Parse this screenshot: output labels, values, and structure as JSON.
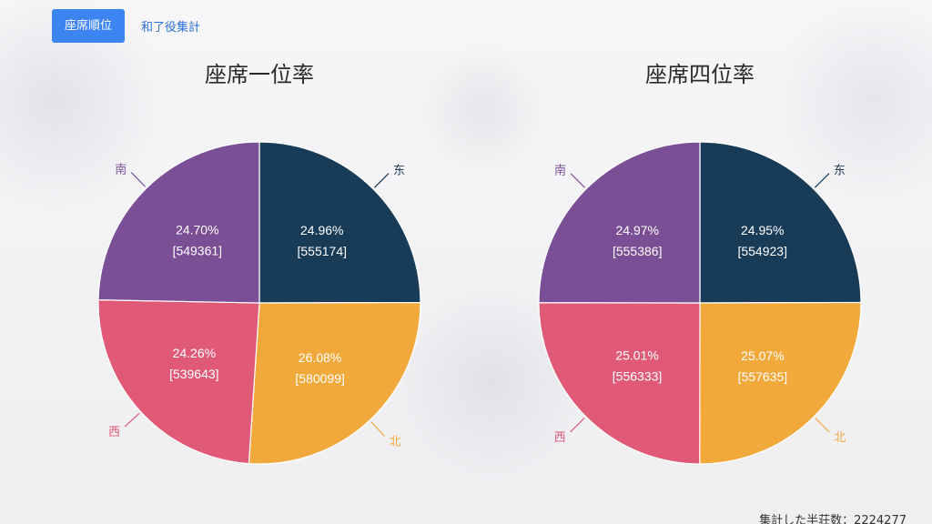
{
  "tabs": {
    "active_label": "座席順位",
    "link_label": "和了役集計"
  },
  "footer": {
    "label": "集計した半荘数：",
    "value": "2224277"
  },
  "colors": {
    "east": "#183b57",
    "north": "#f2a93b",
    "west": "#e05a78",
    "south": "#7a4f96"
  },
  "chart_data": [
    {
      "type": "pie",
      "title": "座席一位率",
      "slices": [
        {
          "label": "东",
          "percent": 24.96,
          "count": 555174,
          "color": "#183b57"
        },
        {
          "label": "北",
          "percent": 26.08,
          "count": 580099,
          "color": "#f2a93b"
        },
        {
          "label": "西",
          "percent": 24.26,
          "count": 539643,
          "color": "#e05a78"
        },
        {
          "label": "南",
          "percent": 24.7,
          "count": 549361,
          "color": "#7a4f96"
        }
      ]
    },
    {
      "type": "pie",
      "title": "座席四位率",
      "slices": [
        {
          "label": "东",
          "percent": 24.95,
          "count": 554923,
          "color": "#183b57"
        },
        {
          "label": "北",
          "percent": 25.07,
          "count": 557635,
          "color": "#f2a93b"
        },
        {
          "label": "西",
          "percent": 25.01,
          "count": 556333,
          "color": "#e05a78"
        },
        {
          "label": "南",
          "percent": 24.97,
          "count": 555386,
          "color": "#7a4f96"
        }
      ]
    }
  ]
}
